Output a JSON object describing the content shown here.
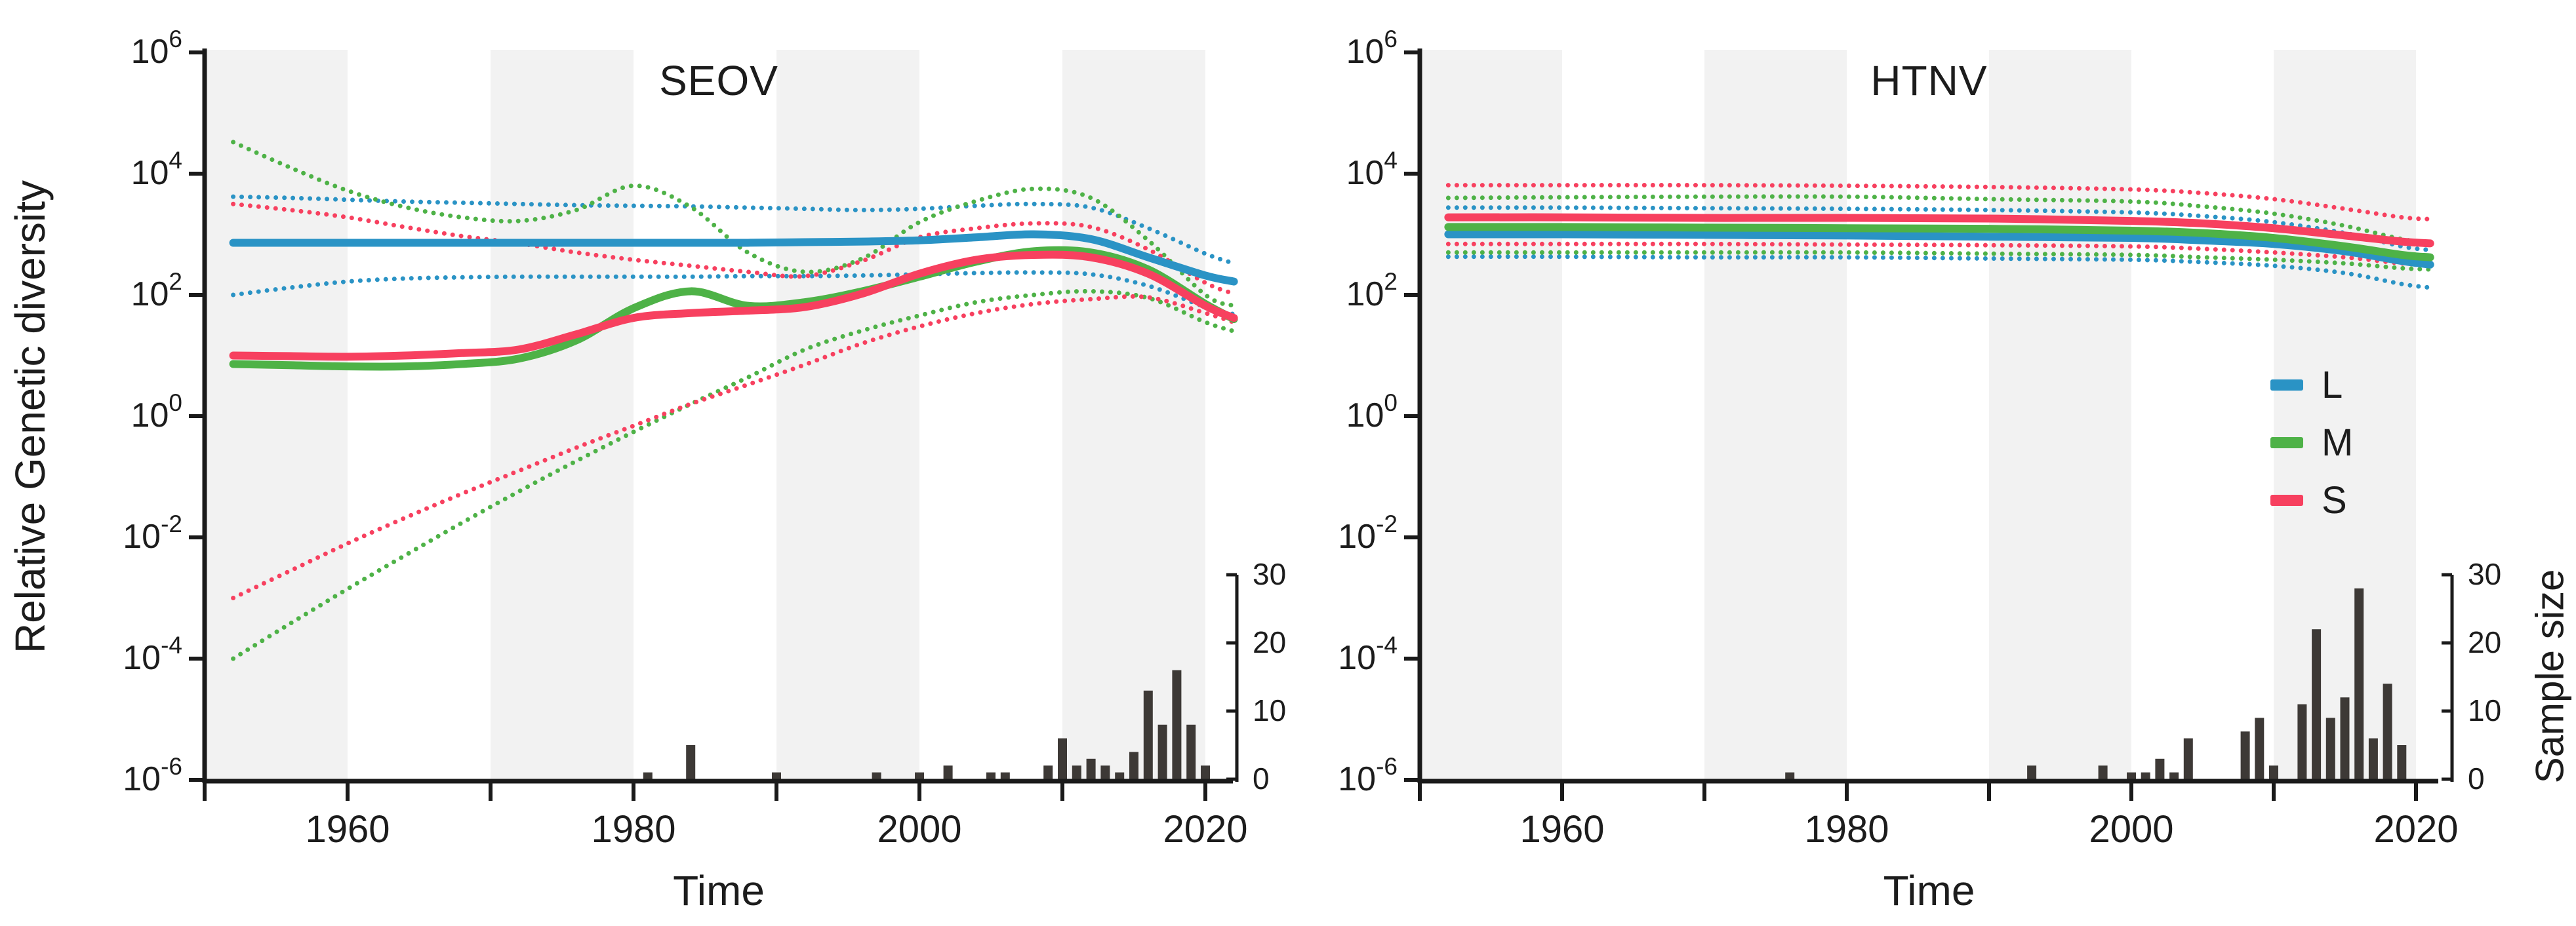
{
  "figure": {
    "y_axis_label": "Relative Genetic diversity",
    "sample_axis_label": "Sample size"
  },
  "legend": {
    "items": [
      {
        "label": "L",
        "color": "#2a93c5"
      },
      {
        "label": "M",
        "color": "#4eb247"
      },
      {
        "label": "S",
        "color": "#f7405f"
      }
    ]
  },
  "colors": {
    "band": "#f2f2f2",
    "bar": "#3d3936",
    "axis": "#1a1a1a",
    "text": "#1c1c1c"
  },
  "chart_data": [
    {
      "id": "seov",
      "type": "line",
      "title": "SEOV",
      "x_label": "Time",
      "y_scale": "log10",
      "y_tick_exponents": [
        6,
        4,
        2,
        0,
        -2,
        -4,
        -6
      ],
      "x_ticks": [
        1960,
        1980,
        2000,
        2020
      ],
      "x_range": [
        1950,
        2022
      ],
      "shaded_decades": [
        [
          1950,
          1960
        ],
        [
          1970,
          1980
        ],
        [
          1990,
          2000
        ],
        [
          2010,
          2020
        ]
      ],
      "years": [
        1952,
        1956,
        1960,
        1964,
        1968,
        1972,
        1976,
        1980,
        1984,
        1988,
        1992,
        1996,
        2000,
        2004,
        2008,
        2012,
        2016,
        2020,
        2022
      ],
      "series": [
        {
          "name": "L",
          "role": "upper95",
          "style": "dotted",
          "log10_values": [
            3.62,
            3.6,
            3.57,
            3.54,
            3.52,
            3.5,
            3.48,
            3.47,
            3.46,
            3.44,
            3.42,
            3.4,
            3.42,
            3.47,
            3.5,
            3.44,
            3.1,
            2.68,
            2.52
          ]
        },
        {
          "name": "L",
          "role": "lower95",
          "style": "dotted",
          "log10_values": [
            2.0,
            2.12,
            2.22,
            2.27,
            2.29,
            2.3,
            2.3,
            2.3,
            2.3,
            2.31,
            2.31,
            2.32,
            2.34,
            2.36,
            2.37,
            2.34,
            2.15,
            1.8,
            1.68
          ]
        },
        {
          "name": "M",
          "role": "upper95",
          "style": "dotted",
          "log10_values": [
            4.52,
            4.1,
            3.72,
            3.45,
            3.28,
            3.22,
            3.4,
            3.8,
            3.45,
            2.7,
            2.38,
            2.6,
            3.2,
            3.55,
            3.75,
            3.6,
            2.9,
            2.0,
            1.82
          ]
        },
        {
          "name": "M",
          "role": "lower95",
          "style": "dotted",
          "log10_values": [
            -4.0,
            -3.42,
            -2.85,
            -2.3,
            -1.76,
            -1.24,
            -0.74,
            -0.26,
            0.2,
            0.64,
            1.1,
            1.41,
            1.66,
            1.88,
            2.0,
            2.06,
            1.95,
            1.55,
            1.4
          ]
        },
        {
          "name": "S",
          "role": "upper95",
          "style": "dotted",
          "log10_values": [
            3.5,
            3.4,
            3.28,
            3.12,
            2.97,
            2.85,
            2.7,
            2.58,
            2.48,
            2.38,
            2.31,
            2.56,
            2.95,
            3.1,
            3.18,
            3.12,
            2.75,
            2.2,
            2.02
          ]
        },
        {
          "name": "S",
          "role": "lower95",
          "style": "dotted",
          "log10_values": [
            -3.0,
            -2.55,
            -2.1,
            -1.68,
            -1.28,
            -0.9,
            -0.52,
            -0.16,
            0.2,
            0.52,
            0.85,
            1.2,
            1.48,
            1.7,
            1.85,
            1.93,
            1.96,
            1.7,
            1.55
          ]
        },
        {
          "name": "L",
          "role": "median",
          "style": "solid",
          "log10_values": [
            2.86,
            2.86,
            2.86,
            2.86,
            2.86,
            2.86,
            2.86,
            2.86,
            2.86,
            2.86,
            2.87,
            2.88,
            2.9,
            2.95,
            3.0,
            2.92,
            2.62,
            2.32,
            2.22
          ]
        },
        {
          "name": "M",
          "role": "median",
          "style": "solid",
          "log10_values": [
            0.86,
            0.84,
            0.82,
            0.82,
            0.86,
            0.95,
            1.25,
            1.78,
            2.06,
            1.82,
            1.88,
            2.06,
            2.3,
            2.55,
            2.72,
            2.7,
            2.42,
            1.85,
            1.6
          ]
        },
        {
          "name": "S",
          "role": "median",
          "style": "solid",
          "log10_values": [
            1.0,
            0.99,
            0.98,
            1.0,
            1.04,
            1.1,
            1.35,
            1.62,
            1.7,
            1.74,
            1.8,
            2.02,
            2.35,
            2.58,
            2.66,
            2.62,
            2.35,
            1.82,
            1.62
          ]
        }
      ],
      "sample_size": {
        "axis_ticks": [
          0,
          10,
          20,
          30
        ],
        "axis_max": 30,
        "years": [
          1981,
          1984,
          1990,
          1997,
          2000,
          2002,
          2005,
          2006,
          2009,
          2010,
          2011,
          2012,
          2013,
          2014,
          2015,
          2016,
          2017,
          2018,
          2019,
          2020
        ],
        "counts": [
          1,
          5,
          1,
          1,
          1,
          2,
          1,
          1,
          2,
          6,
          2,
          3,
          2,
          1,
          4,
          13,
          8,
          16,
          8,
          2
        ]
      }
    },
    {
      "id": "htnv",
      "type": "line",
      "title": "HTNV",
      "x_label": "Time",
      "y_scale": "log10",
      "y_tick_exponents": [
        6,
        4,
        2,
        0,
        -2,
        -4,
        -6
      ],
      "x_ticks": [
        1960,
        1980,
        2000,
        2020
      ],
      "x_range": [
        1950,
        2021
      ],
      "shaded_decades": [
        [
          1950,
          1960
        ],
        [
          1970,
          1980
        ],
        [
          1990,
          2000
        ],
        [
          2010,
          2020
        ]
      ],
      "years": [
        1952,
        1960,
        1970,
        1980,
        1990,
        2000,
        2005,
        2010,
        2015,
        2019,
        2021
      ],
      "series": [
        {
          "name": "L",
          "role": "upper95",
          "style": "dotted",
          "log10_values": [
            3.44,
            3.44,
            3.43,
            3.42,
            3.4,
            3.36,
            3.3,
            3.2,
            3.02,
            2.8,
            2.74
          ]
        },
        {
          "name": "L",
          "role": "lower95",
          "style": "dotted",
          "log10_values": [
            2.63,
            2.63,
            2.62,
            2.62,
            2.6,
            2.58,
            2.54,
            2.48,
            2.36,
            2.18,
            2.12
          ]
        },
        {
          "name": "M",
          "role": "upper95",
          "style": "dotted",
          "log10_values": [
            3.6,
            3.61,
            3.62,
            3.62,
            3.58,
            3.54,
            3.46,
            3.34,
            3.14,
            2.92,
            2.87
          ]
        },
        {
          "name": "M",
          "role": "lower95",
          "style": "dotted",
          "log10_values": [
            2.7,
            2.7,
            2.7,
            2.7,
            2.68,
            2.66,
            2.62,
            2.58,
            2.52,
            2.44,
            2.42
          ]
        },
        {
          "name": "S",
          "role": "upper95",
          "style": "dotted",
          "log10_values": [
            3.81,
            3.81,
            3.81,
            3.8,
            3.78,
            3.74,
            3.68,
            3.58,
            3.42,
            3.28,
            3.25
          ]
        },
        {
          "name": "S",
          "role": "lower95",
          "style": "dotted",
          "log10_values": [
            2.84,
            2.84,
            2.84,
            2.83,
            2.82,
            2.8,
            2.76,
            2.7,
            2.62,
            2.52,
            2.5
          ]
        },
        {
          "name": "L",
          "role": "median",
          "style": "solid",
          "log10_values": [
            3.0,
            3.0,
            2.99,
            2.98,
            2.96,
            2.94,
            2.9,
            2.84,
            2.72,
            2.56,
            2.5
          ]
        },
        {
          "name": "M",
          "role": "median",
          "style": "solid",
          "log10_values": [
            3.12,
            3.12,
            3.11,
            3.1,
            3.09,
            3.06,
            3.02,
            2.94,
            2.8,
            2.66,
            2.62
          ]
        },
        {
          "name": "S",
          "role": "median",
          "style": "solid",
          "log10_values": [
            3.28,
            3.28,
            3.27,
            3.27,
            3.26,
            3.22,
            3.18,
            3.1,
            2.98,
            2.88,
            2.85
          ]
        }
      ],
      "sample_size": {
        "axis_ticks": [
          0,
          10,
          20,
          30
        ],
        "axis_max": 30,
        "years": [
          1976,
          1993,
          1998,
          2000,
          2001,
          2002,
          2003,
          2004,
          2008,
          2009,
          2010,
          2012,
          2013,
          2014,
          2015,
          2016,
          2017,
          2018,
          2019
        ],
        "counts": [
          1,
          2,
          2,
          1,
          1,
          3,
          1,
          6,
          7,
          9,
          2,
          11,
          22,
          9,
          12,
          28,
          6,
          14,
          5
        ]
      }
    }
  ]
}
